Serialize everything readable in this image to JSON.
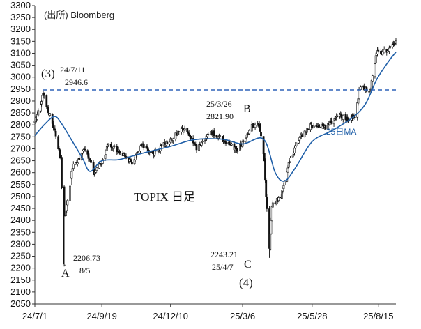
{
  "chart_data": {
    "type": "candlestick",
    "title": "TOPIX 日足",
    "source": "(出所) Bloomberg",
    "ylim": [
      2050,
      3300
    ],
    "ytick_step": 50,
    "x_start": "2024-07-01",
    "x_end": "2025-09-05",
    "xticks": [
      {
        "date": "2024-07-01",
        "label": "24/7/1"
      },
      {
        "date": "2024-09-19",
        "label": "24/9/19"
      },
      {
        "date": "2024-12-10",
        "label": "24/12/10"
      },
      {
        "date": "2025-03-06",
        "label": "25/3/6"
      },
      {
        "date": "2025-05-28",
        "label": "25/5/28"
      },
      {
        "date": "2025-08-15",
        "label": "25/8/15"
      }
    ],
    "price_path": [
      [
        "2024-07-01",
        2810
      ],
      [
        "2024-07-11",
        2930
      ],
      [
        "2024-07-25",
        2770
      ],
      [
        "2024-08-01",
        2650
      ],
      [
        "2024-08-05",
        2227
      ],
      [
        "2024-08-06",
        2420
      ],
      [
        "2024-08-15",
        2620
      ],
      [
        "2024-08-30",
        2700
      ],
      [
        "2024-09-10",
        2600
      ],
      [
        "2024-09-19",
        2640
      ],
      [
        "2024-09-27",
        2720
      ],
      [
        "2024-10-10",
        2690
      ],
      [
        "2024-10-25",
        2640
      ],
      [
        "2024-11-05",
        2710
      ],
      [
        "2024-11-20",
        2680
      ],
      [
        "2024-12-10",
        2740
      ],
      [
        "2024-12-27",
        2790
      ],
      [
        "2025-01-10",
        2700
      ],
      [
        "2025-01-27",
        2770
      ],
      [
        "2025-02-10",
        2740
      ],
      [
        "2025-02-28",
        2690
      ],
      [
        "2025-03-06",
        2730
      ],
      [
        "2025-03-18",
        2800
      ],
      [
        "2025-03-26",
        2800
      ],
      [
        "2025-04-01",
        2660
      ],
      [
        "2025-04-03",
        2500
      ],
      [
        "2025-04-07",
        2288
      ],
      [
        "2025-04-10",
        2460
      ],
      [
        "2025-04-21",
        2500
      ],
      [
        "2025-05-01",
        2650
      ],
      [
        "2025-05-13",
        2750
      ],
      [
        "2025-05-28",
        2800
      ],
      [
        "2025-06-12",
        2790
      ],
      [
        "2025-06-30",
        2840
      ],
      [
        "2025-07-10",
        2820
      ],
      [
        "2025-07-18",
        2840
      ],
      [
        "2025-07-24",
        2960
      ],
      [
        "2025-08-05",
        2940
      ],
      [
        "2025-08-13",
        3100
      ],
      [
        "2025-08-25",
        3110
      ],
      [
        "2025-09-05",
        3150
      ]
    ],
    "ma_label": "25日MA",
    "ma_points": [
      [
        "2024-07-01",
        2755
      ],
      [
        "2024-07-12",
        2800
      ],
      [
        "2024-07-24",
        2835
      ],
      [
        "2024-08-01",
        2810
      ],
      [
        "2024-08-15",
        2730
      ],
      [
        "2024-08-27",
        2660
      ],
      [
        "2024-09-05",
        2605
      ],
      [
        "2024-09-19",
        2650
      ],
      [
        "2024-10-10",
        2655
      ],
      [
        "2024-11-05",
        2680
      ],
      [
        "2024-12-10",
        2710
      ],
      [
        "2025-01-07",
        2738
      ],
      [
        "2025-02-10",
        2740
      ],
      [
        "2025-03-06",
        2720
      ],
      [
        "2025-03-31",
        2740
      ],
      [
        "2025-04-14",
        2600
      ],
      [
        "2025-04-25",
        2565
      ],
      [
        "2025-05-08",
        2620
      ],
      [
        "2025-05-28",
        2730
      ],
      [
        "2025-06-20",
        2775
      ],
      [
        "2025-07-15",
        2830
      ],
      [
        "2025-07-31",
        2890
      ],
      [
        "2025-08-13",
        2990
      ],
      [
        "2025-08-28",
        3070
      ],
      [
        "2025-09-05",
        3105
      ]
    ],
    "reference_line": {
      "value": 2946.6
    },
    "annotations": {
      "label_3": "(3)",
      "label_3_date": "24/7/11",
      "label_3_value": "2946.6",
      "label_a_value": "2206.73",
      "label_a_date": "8/5",
      "label_a": "A",
      "label_b_date": "25/3/26",
      "label_b_value": "2821.90",
      "label_b": "B",
      "label_c_value": "2243.21",
      "label_c_date": "25/4/7",
      "label_c": "C",
      "label_4": "(4)"
    },
    "colors": {
      "candles": "#111111",
      "ma": "#1f5fa8",
      "reference": "#2f62b8",
      "axis": "#333333"
    }
  }
}
